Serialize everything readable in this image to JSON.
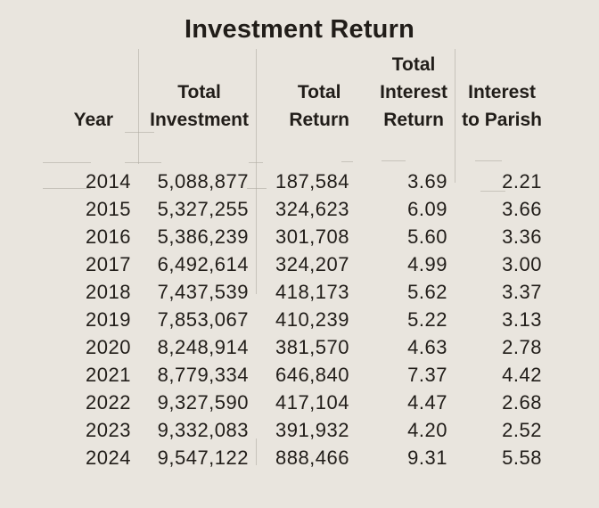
{
  "title": "Investment Return",
  "colors": {
    "background": "#e9e5de",
    "text": "#211d19",
    "gridline": "#aba79f"
  },
  "headers": {
    "year": [
      "Year"
    ],
    "total_investment": [
      "Total",
      "Investment"
    ],
    "total_return": [
      "Total",
      "Return"
    ],
    "total_interest_return": [
      "Total",
      "Interest",
      "Return"
    ],
    "interest_to_parish": [
      "Interest",
      "to Parish"
    ]
  },
  "rows": [
    [
      "2014",
      "5,088,877",
      "187,584",
      "3.69",
      "2.21"
    ],
    [
      "2015",
      "5,327,255",
      "324,623",
      "6.09",
      "3.66"
    ],
    [
      "2016",
      "5,386,239",
      "301,708",
      "5.60",
      "3.36"
    ],
    [
      "2017",
      "6,492,614",
      "324,207",
      "4.99",
      "3.00"
    ],
    [
      "2018",
      "7,437,539",
      "418,173",
      "5.62",
      "3.37"
    ],
    [
      "2019",
      "7,853,067",
      "410,239",
      "5.22",
      "3.13"
    ],
    [
      "2020",
      "8,248,914",
      "381,570",
      "4.63",
      "2.78"
    ],
    [
      "2021",
      "8,779,334",
      "646,840",
      "7.37",
      "4.42"
    ],
    [
      "2022",
      "9,327,590",
      "417,104",
      "4.47",
      "2.68"
    ],
    [
      "2023",
      "9,332,083",
      "391,932",
      "4.20",
      "2.52"
    ],
    [
      "2024",
      "9,547,122",
      "888,466",
      "9.31",
      "5.58"
    ]
  ],
  "chart_data": {
    "type": "table",
    "title": "Investment Return",
    "columns": [
      "Year",
      "Total Investment",
      "Total Return",
      "Total Interest Return",
      "Interest to Parish"
    ],
    "rows": [
      [
        2014,
        5088877,
        187584,
        3.69,
        2.21
      ],
      [
        2015,
        5327255,
        324623,
        6.09,
        3.66
      ],
      [
        2016,
        5386239,
        301708,
        5.6,
        3.36
      ],
      [
        2017,
        6492614,
        324207,
        4.99,
        3.0
      ],
      [
        2018,
        7437539,
        418173,
        5.62,
        3.37
      ],
      [
        2019,
        7853067,
        410239,
        5.22,
        3.13
      ],
      [
        2020,
        8248914,
        381570,
        4.63,
        2.78
      ],
      [
        2021,
        8779334,
        646840,
        7.37,
        4.42
      ],
      [
        2022,
        9327590,
        417104,
        4.47,
        2.68
      ],
      [
        2023,
        9332083,
        391932,
        4.2,
        2.52
      ],
      [
        2024,
        9547122,
        888466,
        9.31,
        5.58
      ]
    ]
  }
}
